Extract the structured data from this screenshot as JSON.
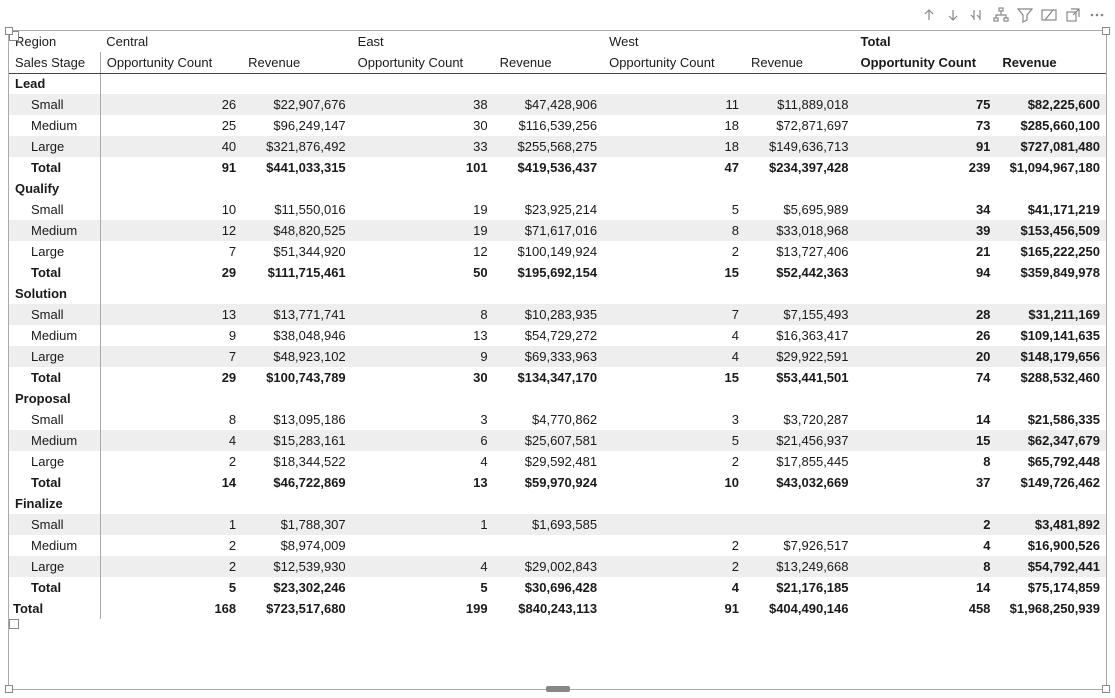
{
  "icons": {
    "up": "arrow-up",
    "down": "arrow-down",
    "drill_rows": "drill-rows",
    "hierarchy": "hierarchy",
    "filter": "filter",
    "focus": "focus",
    "popout": "popout",
    "more": "more"
  },
  "columns": {
    "row_header_top": "Region",
    "row_header_bottom": "Sales Stage",
    "regions": [
      "Central",
      "East",
      "West",
      "Total"
    ],
    "measures": [
      "Opportunity Count",
      "Revenue"
    ]
  },
  "stages": [
    {
      "name": "Lead",
      "rows": [
        {
          "label": "Small",
          "cells": [
            "26",
            "$22,907,676",
            "38",
            "$47,428,906",
            "11",
            "$11,889,018",
            "75",
            "$82,225,600"
          ],
          "stripe": true
        },
        {
          "label": "Medium",
          "cells": [
            "25",
            "$96,249,147",
            "30",
            "$116,539,256",
            "18",
            "$72,871,697",
            "73",
            "$285,660,100"
          ],
          "stripe": false
        },
        {
          "label": "Large",
          "cells": [
            "40",
            "$321,876,492",
            "33",
            "$255,568,275",
            "18",
            "$149,636,713",
            "91",
            "$727,081,480"
          ],
          "stripe": true
        }
      ],
      "subtotal": {
        "label": "Total",
        "cells": [
          "91",
          "$441,033,315",
          "101",
          "$419,536,437",
          "47",
          "$234,397,428",
          "239",
          "$1,094,967,180"
        ]
      }
    },
    {
      "name": "Qualify",
      "rows": [
        {
          "label": "Small",
          "cells": [
            "10",
            "$11,550,016",
            "19",
            "$23,925,214",
            "5",
            "$5,695,989",
            "34",
            "$41,171,219"
          ],
          "stripe": false
        },
        {
          "label": "Medium",
          "cells": [
            "12",
            "$48,820,525",
            "19",
            "$71,617,016",
            "8",
            "$33,018,968",
            "39",
            "$153,456,509"
          ],
          "stripe": true
        },
        {
          "label": "Large",
          "cells": [
            "7",
            "$51,344,920",
            "12",
            "$100,149,924",
            "2",
            "$13,727,406",
            "21",
            "$165,222,250"
          ],
          "stripe": false
        }
      ],
      "subtotal": {
        "label": "Total",
        "cells": [
          "29",
          "$111,715,461",
          "50",
          "$195,692,154",
          "15",
          "$52,442,363",
          "94",
          "$359,849,978"
        ]
      }
    },
    {
      "name": "Solution",
      "rows": [
        {
          "label": "Small",
          "cells": [
            "13",
            "$13,771,741",
            "8",
            "$10,283,935",
            "7",
            "$7,155,493",
            "28",
            "$31,211,169"
          ],
          "stripe": true
        },
        {
          "label": "Medium",
          "cells": [
            "9",
            "$38,048,946",
            "13",
            "$54,729,272",
            "4",
            "$16,363,417",
            "26",
            "$109,141,635"
          ],
          "stripe": false
        },
        {
          "label": "Large",
          "cells": [
            "7",
            "$48,923,102",
            "9",
            "$69,333,963",
            "4",
            "$29,922,591",
            "20",
            "$148,179,656"
          ],
          "stripe": true
        }
      ],
      "subtotal": {
        "label": "Total",
        "cells": [
          "29",
          "$100,743,789",
          "30",
          "$134,347,170",
          "15",
          "$53,441,501",
          "74",
          "$288,532,460"
        ]
      }
    },
    {
      "name": "Proposal",
      "rows": [
        {
          "label": "Small",
          "cells": [
            "8",
            "$13,095,186",
            "3",
            "$4,770,862",
            "3",
            "$3,720,287",
            "14",
            "$21,586,335"
          ],
          "stripe": false
        },
        {
          "label": "Medium",
          "cells": [
            "4",
            "$15,283,161",
            "6",
            "$25,607,581",
            "5",
            "$21,456,937",
            "15",
            "$62,347,679"
          ],
          "stripe": true
        },
        {
          "label": "Large",
          "cells": [
            "2",
            "$18,344,522",
            "4",
            "$29,592,481",
            "2",
            "$17,855,445",
            "8",
            "$65,792,448"
          ],
          "stripe": false
        }
      ],
      "subtotal": {
        "label": "Total",
        "cells": [
          "14",
          "$46,722,869",
          "13",
          "$59,970,924",
          "10",
          "$43,032,669",
          "37",
          "$149,726,462"
        ]
      }
    },
    {
      "name": "Finalize",
      "rows": [
        {
          "label": "Small",
          "cells": [
            "1",
            "$1,788,307",
            "1",
            "$1,693,585",
            "",
            "",
            "2",
            "$3,481,892"
          ],
          "stripe": true
        },
        {
          "label": "Medium",
          "cells": [
            "2",
            "$8,974,009",
            "",
            "",
            "2",
            "$7,926,517",
            "4",
            "$16,900,526"
          ],
          "stripe": false
        },
        {
          "label": "Large",
          "cells": [
            "2",
            "$12,539,930",
            "4",
            "$29,002,843",
            "2",
            "$13,249,668",
            "8",
            "$54,792,441"
          ],
          "stripe": true
        }
      ],
      "subtotal": {
        "label": "Total",
        "cells": [
          "5",
          "$23,302,246",
          "5",
          "$30,696,428",
          "4",
          "$21,176,185",
          "14",
          "$75,174,859"
        ]
      }
    }
  ],
  "grand_total": {
    "label": "Total",
    "cells": [
      "168",
      "$723,517,680",
      "199",
      "$840,243,113",
      "91",
      "$404,490,146",
      "458",
      "$1,968,250,939"
    ]
  },
  "style": {
    "font_family": "Segoe UI",
    "font_size": 13,
    "stripe_color": "#eeeeee",
    "border_color": "#aaaaaa",
    "header_underline_color": "#444444",
    "row_header_divider": true,
    "total_bold": true
  }
}
